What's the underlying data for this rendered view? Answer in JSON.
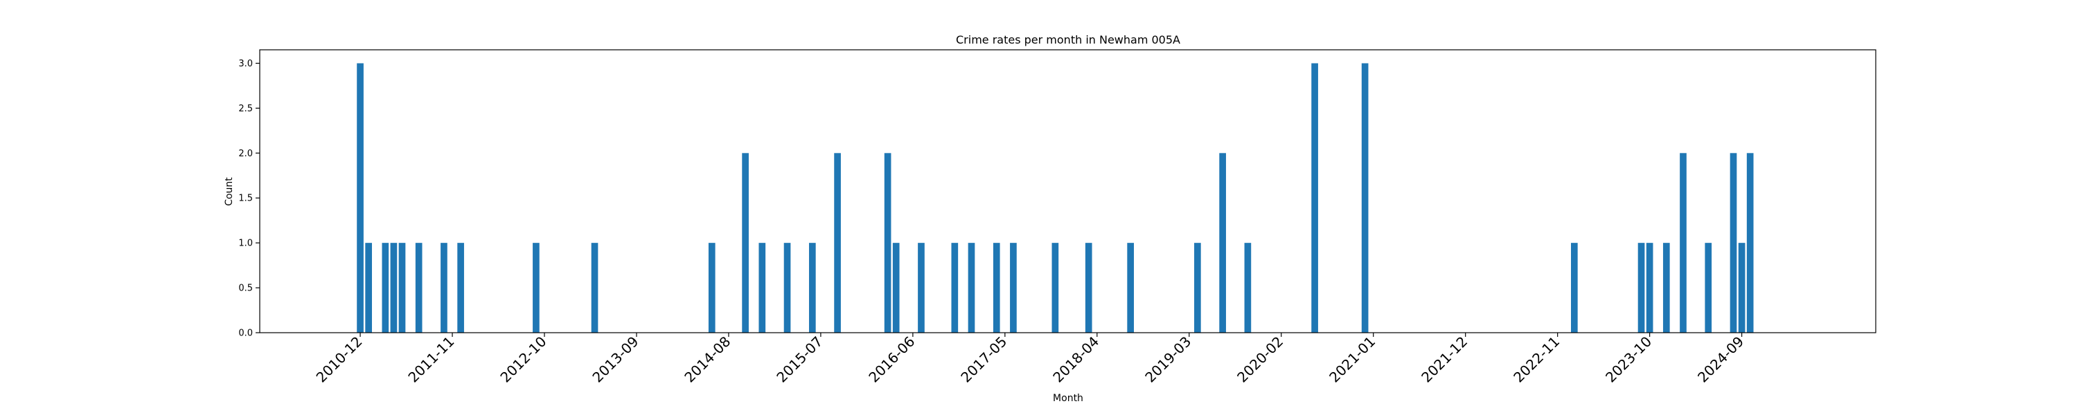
{
  "chart_data": {
    "type": "bar",
    "title": "Crime rates per month in Newham 005A",
    "xlabel": "Month",
    "ylabel": "Count",
    "ylim": [
      0,
      3.15
    ],
    "xlim": [
      "2009-12",
      "2026-01"
    ],
    "yticks": [
      "0.0",
      "0.5",
      "1.0",
      "1.5",
      "2.0",
      "2.5",
      "3.0"
    ],
    "xticks": [
      "2010-12",
      "2011-11",
      "2012-10",
      "2013-09",
      "2014-08",
      "2015-07",
      "2016-06",
      "2017-05",
      "2018-04",
      "2019-03",
      "2020-02",
      "2021-01",
      "2021-12",
      "2022-11",
      "2023-10",
      "2024-09"
    ],
    "x": [
      "2010-12",
      "2011-01",
      "2011-03",
      "2011-04",
      "2011-05",
      "2011-07",
      "2011-10",
      "2011-12",
      "2012-09",
      "2013-04",
      "2014-06",
      "2014-10",
      "2014-12",
      "2015-03",
      "2015-06",
      "2015-09",
      "2016-03",
      "2016-04",
      "2016-07",
      "2016-11",
      "2017-01",
      "2017-04",
      "2017-06",
      "2017-11",
      "2018-03",
      "2018-08",
      "2019-04",
      "2019-07",
      "2019-10",
      "2020-06",
      "2020-12",
      "2023-01",
      "2023-09",
      "2023-10",
      "2023-12",
      "2024-02",
      "2024-05",
      "2024-08",
      "2024-09",
      "2024-10"
    ],
    "values": [
      3,
      1,
      1,
      1,
      1,
      1,
      1,
      1,
      1,
      1,
      1,
      2,
      1,
      1,
      1,
      2,
      2,
      1,
      1,
      1,
      1,
      1,
      1,
      1,
      1,
      1,
      1,
      2,
      1,
      3,
      3,
      1,
      1,
      1,
      1,
      2,
      1,
      2,
      1,
      2
    ],
    "bar_color": "#1f77b4",
    "grid": false
  }
}
